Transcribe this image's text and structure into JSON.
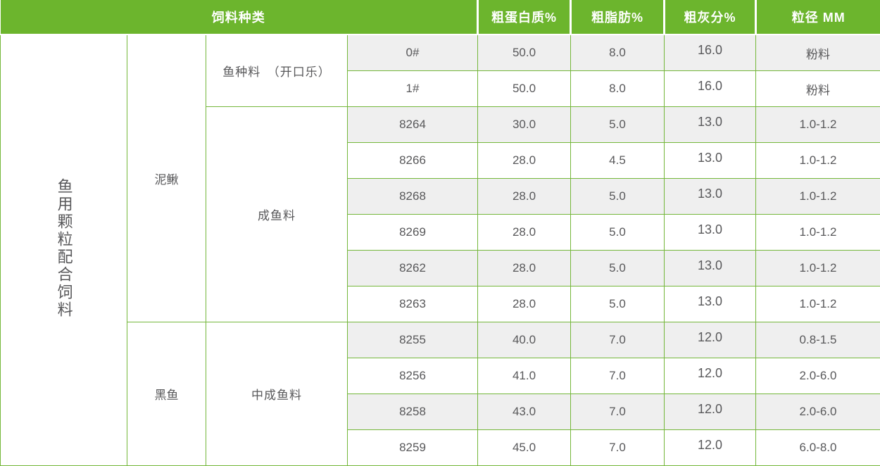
{
  "colors": {
    "header_bg": "#6cb52d",
    "border": "#74b73a",
    "stripe": "#efefef",
    "text": "#58585a",
    "header_text": "#ffffff"
  },
  "header": {
    "feed_type": "饲料种类",
    "protein": "粗蛋白质%",
    "fat": "粗脂肪%",
    "ash": "粗灰分%",
    "particle": "粒径 MM"
  },
  "category": {
    "label": "鱼用颗粒配合饲料"
  },
  "species": [
    {
      "label": "泥鳅",
      "rows": 8
    },
    {
      "label": "黑鱼",
      "rows": 4
    }
  ],
  "stages": [
    {
      "label": "鱼种料　（开口乐）",
      "rows": 2
    },
    {
      "label": "成鱼料",
      "rows": 6
    },
    {
      "label": "中成鱼料",
      "rows": 4
    }
  ],
  "rows": [
    {
      "model": "0#",
      "protein": "50.0",
      "fat": "8.0",
      "ash": "16.0",
      "particle": "粉料"
    },
    {
      "model": "1#",
      "protein": "50.0",
      "fat": "8.0",
      "ash": "16.0",
      "particle": "粉料"
    },
    {
      "model": "8264",
      "protein": "30.0",
      "fat": "5.0",
      "ash": "13.0",
      "particle": "1.0-1.2"
    },
    {
      "model": "8266",
      "protein": "28.0",
      "fat": "4.5",
      "ash": "13.0",
      "particle": "1.0-1.2"
    },
    {
      "model": "8268",
      "protein": "28.0",
      "fat": "5.0",
      "ash": "13.0",
      "particle": "1.0-1.2"
    },
    {
      "model": "8269",
      "protein": "28.0",
      "fat": "5.0",
      "ash": "13.0",
      "particle": "1.0-1.2"
    },
    {
      "model": "8262",
      "protein": "28.0",
      "fat": "5.0",
      "ash": "13.0",
      "particle": "1.0-1.2"
    },
    {
      "model": "8263",
      "protein": "28.0",
      "fat": "5.0",
      "ash": "13.0",
      "particle": "1.0-1.2"
    },
    {
      "model": "8255",
      "protein": "40.0",
      "fat": "7.0",
      "ash": "12.0",
      "particle": "0.8-1.5"
    },
    {
      "model": "8256",
      "protein": "41.0",
      "fat": "7.0",
      "ash": "12.0",
      "particle": "2.0-6.0"
    },
    {
      "model": "8258",
      "protein": "43.0",
      "fat": "7.0",
      "ash": "12.0",
      "particle": "2.0-6.0"
    },
    {
      "model": "8259",
      "protein": "45.0",
      "fat": "7.0",
      "ash": "12.0",
      "particle": "6.0-8.0"
    }
  ]
}
